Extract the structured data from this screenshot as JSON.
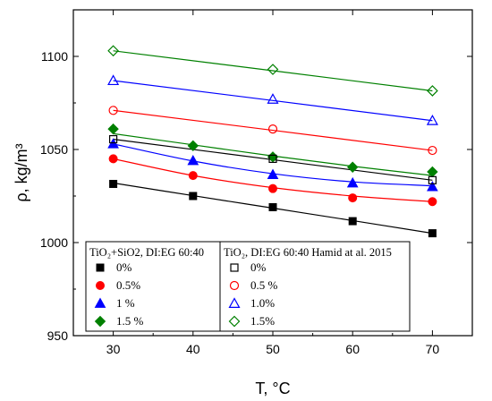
{
  "chart_data": {
    "type": "scatter",
    "xlabel": "T, °C",
    "ylabel": "ρ, kg/m³",
    "xlim": [
      25,
      75
    ],
    "ylim": [
      950,
      1125
    ],
    "xticks": [
      "30",
      "40",
      "50",
      "60",
      "70"
    ],
    "yticks": [
      "950",
      "1000",
      "1050",
      "1100"
    ],
    "grid": false,
    "legend_left": {
      "title": "TiO₂+SiO2, DI:EG 60:40",
      "placement": "bottom-left"
    },
    "legend_right": {
      "title": "TiO₂, DI:EG 60:40 Hamid at al. 2015",
      "placement": "bottom-center"
    },
    "series": [
      {
        "name": "0%",
        "legend": "left",
        "marker": "square",
        "filled": true,
        "color": "#000000",
        "x": [
          30,
          40,
          50,
          60,
          70
        ],
        "y": [
          1031.5,
          1025,
          1019,
          1011.5,
          1005
        ],
        "fit": [
          1032,
          1025.2,
          1018.5,
          1011.8,
          1005
        ]
      },
      {
        "name": "0.5%",
        "legend": "left",
        "marker": "circle",
        "filled": true,
        "color": "#ff0000",
        "x": [
          30,
          40,
          50,
          60,
          70
        ],
        "y": [
          1045,
          1036,
          1029,
          1024,
          1022
        ],
        "fit": [
          1045,
          1036,
          1029.5,
          1025,
          1022
        ]
      },
      {
        "name": "1 %",
        "legend": "left",
        "marker": "triangle",
        "filled": true,
        "color": "#0000ff",
        "x": [
          30,
          40,
          50,
          60,
          70
        ],
        "y": [
          1053,
          1044,
          1036.5,
          1032,
          1030
        ],
        "fit": [
          1053,
          1043.8,
          1037,
          1032.6,
          1030.5
        ]
      },
      {
        "name": "1.5 %",
        "legend": "left",
        "marker": "diamond",
        "filled": true,
        "color": "#008000",
        "x": [
          30,
          40,
          50,
          60,
          70
        ],
        "y": [
          1061,
          1052,
          1046,
          1040.5,
          1038
        ],
        "fit": [
          1058.5,
          1052.5,
          1046.5,
          1041,
          1036
        ]
      },
      {
        "name": "0%",
        "legend": "right",
        "marker": "square",
        "filled": false,
        "color": "#000000",
        "x": [
          30,
          50,
          70
        ],
        "y": [
          1055.5,
          1045,
          1033.5
        ],
        "fit": [
          1055.5,
          1044.5,
          1033.5
        ]
      },
      {
        "name": "0.5 %",
        "legend": "right",
        "marker": "circle",
        "filled": false,
        "color": "#ff0000",
        "x": [
          30,
          50,
          70
        ],
        "y": [
          1071,
          1061,
          1049.5
        ],
        "fit": [
          1071,
          1060.3,
          1049.5
        ]
      },
      {
        "name": "1.0%",
        "legend": "right",
        "marker": "triangle",
        "filled": false,
        "color": "#0000ff",
        "x": [
          30,
          50,
          70
        ],
        "y": [
          1087,
          1077,
          1065.5
        ],
        "fit": [
          1087,
          1076.3,
          1065.5
        ]
      },
      {
        "name": "1.5%",
        "legend": "right",
        "marker": "diamond",
        "filled": false,
        "color": "#008000",
        "x": [
          30,
          50,
          70
        ],
        "y": [
          1103,
          1093,
          1081.5
        ],
        "fit": [
          1103,
          1092.3,
          1081.5
        ]
      }
    ]
  }
}
